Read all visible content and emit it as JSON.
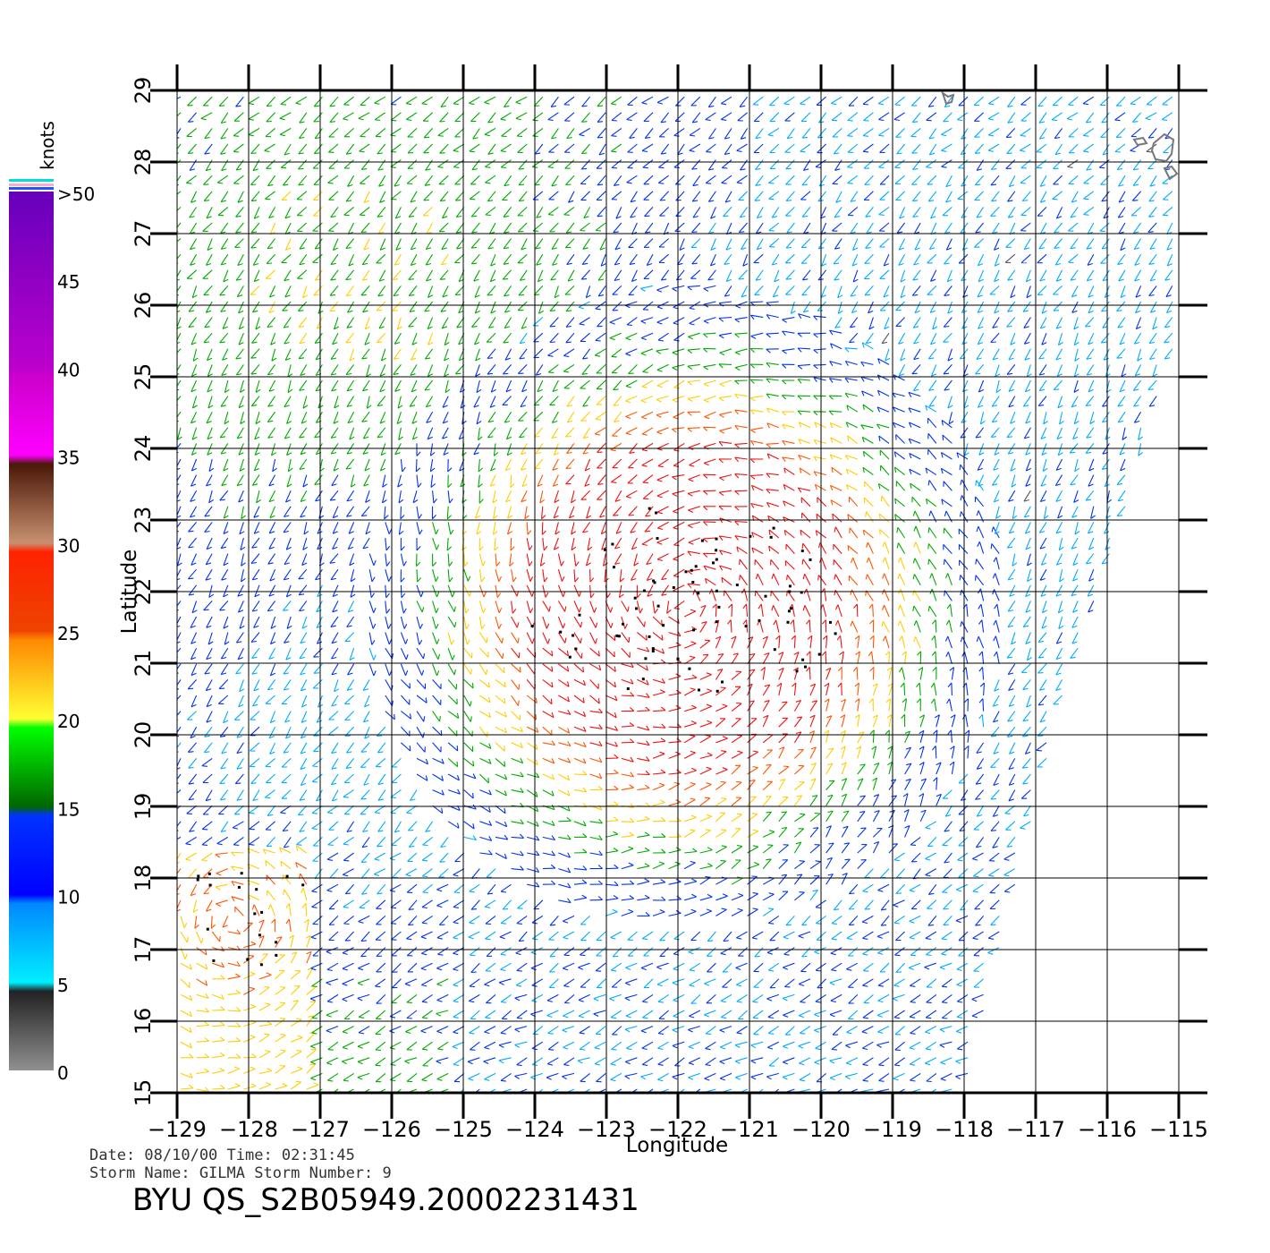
{
  "map": {
    "lon_min": -129,
    "lon_max": -115,
    "lat_min": 15,
    "lat_max": 29,
    "x_label": "Longitude",
    "y_label": "Latitude",
    "x_ticks": [
      "−129",
      "−128",
      "−127",
      "−126",
      "−125",
      "−124",
      "−123",
      "−122",
      "−121",
      "−120",
      "−119",
      "−118",
      "−117",
      "−116",
      "−115"
    ],
    "y_ticks": [
      "15",
      "16",
      "17",
      "18",
      "19",
      "20",
      "21",
      "22",
      "23",
      "24",
      "25",
      "26",
      "27",
      "28",
      "29"
    ],
    "grid": true,
    "storm_center": {
      "lon": -121.9,
      "lat": 21.8
    }
  },
  "legend": {
    "title": "knots",
    "labels": [
      {
        "value": 0,
        "text": "0"
      },
      {
        "value": 5,
        "text": "5"
      },
      {
        "value": 10,
        "text": "10"
      },
      {
        "value": 15,
        "text": "15"
      },
      {
        "value": 20,
        "text": "20"
      },
      {
        "value": 25,
        "text": "25"
      },
      {
        "value": 30,
        "text": "30"
      },
      {
        "value": 35,
        "text": "35"
      },
      {
        "value": 40,
        "text": "40"
      },
      {
        "value": 45,
        "text": "45"
      },
      {
        "value": 50,
        "text": ">50"
      }
    ],
    "colors": {
      "0-5": "#555555",
      "5-10": "#00aaff",
      "10-15": "#0033ee",
      "15-20": "#00aa00",
      "20-25": "#ffcc00",
      "25-30": "#ff5500",
      "30-35": "#ee1111",
      "35-40": "#a0522d",
      "40-45": "#ee00ee",
      "45-50": "#7700cc"
    }
  },
  "footer": {
    "line1": "Date: 08/10/00   Time: 02:31:45",
    "line2": "Storm Name: GILMA   Storm Number: 9",
    "title": "BYU QS_S2B05949.20002231431"
  }
}
